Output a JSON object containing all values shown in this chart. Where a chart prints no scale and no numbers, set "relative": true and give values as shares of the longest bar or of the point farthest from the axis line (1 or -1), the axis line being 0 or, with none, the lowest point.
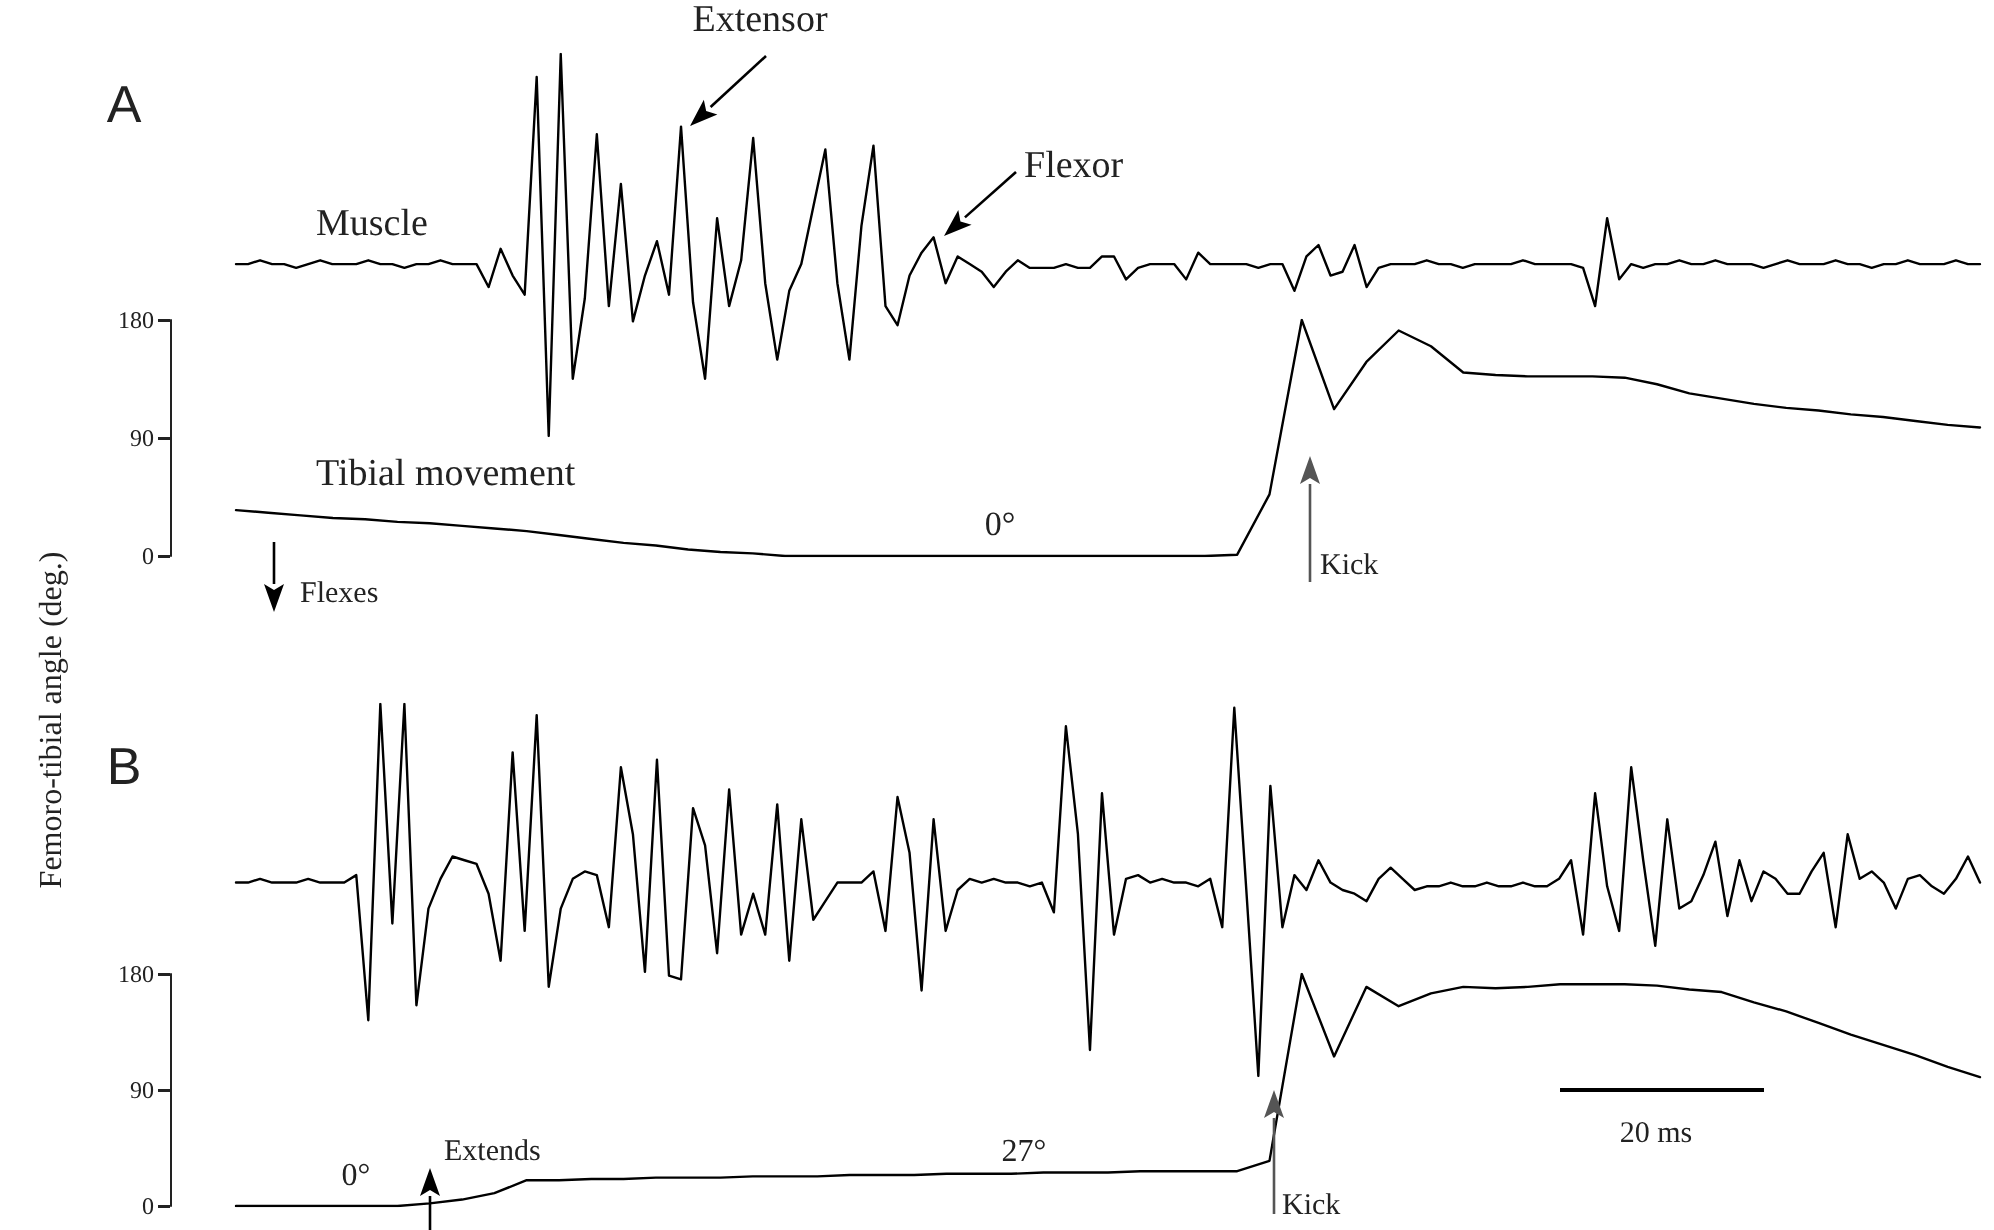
{
  "chart_data": [
    {
      "type": "line",
      "relative": true,
      "tick_labels": false,
      "color": "#000000",
      "annotations": [
        "A",
        "Muscle",
        "Extensor",
        "Flexor"
      ],
      "categories": [
        null,
        null,
        null,
        null,
        null,
        null,
        null,
        null,
        null,
        null,
        null,
        null,
        null,
        null,
        null,
        null,
        null,
        null,
        null,
        null,
        null,
        null,
        null,
        null,
        null,
        null,
        null,
        null,
        null,
        null,
        null,
        null,
        null,
        null,
        null,
        null,
        null,
        null,
        null,
        null,
        null,
        null,
        null,
        null,
        null,
        null,
        null,
        null,
        null,
        null,
        null,
        null,
        null,
        null,
        null,
        null,
        null,
        null,
        null,
        null,
        null,
        null,
        null,
        null,
        null,
        null,
        null,
        null,
        null,
        null,
        null,
        null,
        null,
        null,
        null,
        null,
        null,
        null,
        null,
        null,
        null,
        null,
        null,
        null,
        null,
        null,
        null,
        null,
        null,
        null,
        null,
        null,
        null,
        null,
        null,
        null,
        null,
        null,
        null,
        null,
        null,
        null,
        null,
        null,
        null,
        null,
        null,
        null,
        null,
        null,
        null,
        null,
        null,
        null,
        null,
        null,
        null,
        null,
        null,
        null,
        null,
        null,
        null,
        null,
        null,
        null,
        null,
        null,
        null,
        null,
        null,
        null,
        null,
        null,
        null,
        null,
        null,
        null,
        null,
        null,
        null,
        null,
        null,
        null,
        null,
        null
      ],
      "values": [
        0.45,
        0.45,
        0.46,
        0.45,
        0.45,
        0.44,
        0.45,
        0.46,
        0.45,
        0.45,
        0.45,
        0.46,
        0.45,
        0.45,
        0.44,
        0.45,
        0.45,
        0.46,
        0.45,
        0.45,
        0.45,
        0.39,
        0.49,
        0.42,
        0.37,
        0.94,
        0,
        1,
        0.15,
        0.36,
        0.79,
        0.34,
        0.66,
        0.3,
        0.42,
        0.51,
        0.37,
        0.81,
        0.35,
        0.15,
        0.57,
        0.34,
        0.46,
        0.78,
        0.4,
        0.2,
        0.38,
        0.45,
        0.6,
        0.75,
        0.4,
        0.2,
        0.55,
        0.76,
        0.34,
        0.29,
        0.42,
        0.48,
        0.52,
        0.4,
        0.47,
        0.45,
        0.43,
        0.39,
        0.43,
        0.46,
        0.44,
        0.44,
        0.44,
        0.45,
        0.44,
        0.44,
        0.47,
        0.47,
        0.41,
        0.44,
        0.45,
        0.45,
        0.45,
        0.41,
        0.48,
        0.45,
        0.45,
        0.45,
        0.45,
        0.44,
        0.45,
        0.45,
        0.38,
        0.47,
        0.5,
        0.42,
        0.43,
        0.5,
        0.39,
        0.44,
        0.45,
        0.45,
        0.45,
        0.46,
        0.45,
        0.45,
        0.44,
        0.45,
        0.45,
        0.45,
        0.45,
        0.46,
        0.45,
        0.45,
        0.45,
        0.45,
        0.44,
        0.34,
        0.57,
        0.41,
        0.45,
        0.44,
        0.45,
        0.45,
        0.46,
        0.45,
        0.45,
        0.46,
        0.45,
        0.45,
        0.45,
        0.44,
        0.45,
        0.46,
        0.45,
        0.45,
        0.45,
        0.46,
        0.45,
        0.45,
        0.44,
        0.45,
        0.45,
        0.46,
        0.45,
        0.45,
        0.45,
        0.46,
        0.45,
        0.45
      ]
    },
    {
      "type": "line",
      "tick_labels": "y",
      "color": "#000000",
      "ylabel": "Femoro-tibial angle (deg.)",
      "ylim": [
        0,
        180
      ],
      "yticks": [
        0,
        90,
        180
      ],
      "annotations": [
        "Tibial movement",
        "0°",
        "Kick",
        "Flexes"
      ],
      "categories": [
        null,
        null,
        null,
        null,
        null,
        null,
        null,
        null,
        null,
        null,
        null,
        null,
        null,
        null,
        null,
        null,
        null,
        null,
        null,
        null,
        null,
        null,
        null,
        null,
        null,
        null,
        null,
        null,
        null,
        null,
        null,
        null,
        null,
        null,
        null,
        null,
        null,
        null,
        null,
        null,
        null,
        null,
        null,
        null,
        null,
        null,
        null,
        null,
        null,
        null,
        null,
        null,
        null,
        null,
        null
      ],
      "values": [
        35,
        33,
        31,
        29,
        28,
        26,
        25,
        23,
        21,
        19,
        16,
        13,
        10,
        8,
        5,
        3,
        2,
        0,
        0,
        0,
        0,
        0,
        0,
        0,
        0,
        0,
        0,
        0,
        0,
        0,
        0,
        1,
        47,
        180,
        112,
        148,
        172,
        160,
        140,
        138,
        137,
        137,
        137,
        136,
        131,
        124,
        120,
        116,
        113,
        111,
        108,
        106,
        103,
        100,
        98
      ]
    },
    {
      "type": "line",
      "relative": true,
      "tick_labels": false,
      "color": "#000000",
      "annotations": [
        "B"
      ],
      "categories": [
        null,
        null,
        null,
        null,
        null,
        null,
        null,
        null,
        null,
        null,
        null,
        null,
        null,
        null,
        null,
        null,
        null,
        null,
        null,
        null,
        null,
        null,
        null,
        null,
        null,
        null,
        null,
        null,
        null,
        null,
        null,
        null,
        null,
        null,
        null,
        null,
        null,
        null,
        null,
        null,
        null,
        null,
        null,
        null,
        null,
        null,
        null,
        null,
        null,
        null,
        null,
        null,
        null,
        null,
        null,
        null,
        null,
        null,
        null,
        null,
        null,
        null,
        null,
        null,
        null,
        null,
        null,
        null,
        null,
        null,
        null,
        null,
        null,
        null,
        null,
        null,
        null,
        null,
        null,
        null,
        null,
        null,
        null,
        null,
        null,
        null,
        null,
        null,
        null,
        null,
        null,
        null,
        null,
        null,
        null,
        null,
        null,
        null,
        null,
        null,
        null,
        null,
        null,
        null,
        null,
        null,
        null,
        null,
        null,
        null,
        null,
        null,
        null,
        null,
        null,
        null,
        null,
        null,
        null,
        null,
        null,
        null,
        null,
        null,
        null,
        null,
        null,
        null,
        null,
        null,
        null,
        null,
        null,
        null,
        null,
        null,
        null,
        null,
        null,
        null,
        null,
        null,
        null,
        null,
        null,
        null
      ],
      "values": [
        0.52,
        0.52,
        0.53,
        0.52,
        0.52,
        0.52,
        0.53,
        0.52,
        0.52,
        0.52,
        0.54,
        0.15,
        1,
        0.41,
        1,
        0.19,
        0.45,
        0.53,
        0.59,
        0.58,
        0.57,
        0.49,
        0.31,
        0.87,
        0.39,
        0.97,
        0.24,
        0.45,
        0.53,
        0.55,
        0.54,
        0.4,
        0.83,
        0.65,
        0.28,
        0.85,
        0.27,
        0.26,
        0.72,
        0.62,
        0.33,
        0.77,
        0.38,
        0.49,
        0.38,
        0.73,
        0.31,
        0.69,
        0.42,
        0.47,
        0.52,
        0.52,
        0.52,
        0.55,
        0.39,
        0.75,
        0.6,
        0.23,
        0.69,
        0.39,
        0.5,
        0.53,
        0.52,
        0.53,
        0.52,
        0.52,
        0.51,
        0.52,
        0.44,
        0.94,
        0.65,
        0.07,
        0.76,
        0.38,
        0.53,
        0.54,
        0.52,
        0.53,
        0.52,
        0.52,
        0.51,
        0.53,
        0.4,
        0.99,
        0.5,
        0,
        0.78,
        0.4,
        0.54,
        0.5,
        0.58,
        0.52,
        0.5,
        0.49,
        0.47,
        0.53,
        0.56,
        0.53,
        0.5,
        0.51,
        0.51,
        0.52,
        0.51,
        0.51,
        0.52,
        0.51,
        0.51,
        0.52,
        0.51,
        0.51,
        0.53,
        0.58,
        0.38,
        0.76,
        0.51,
        0.39,
        0.83,
        0.58,
        0.35,
        0.69,
        0.45,
        0.47,
        0.54,
        0.63,
        0.43,
        0.58,
        0.47,
        0.55,
        0.53,
        0.49,
        0.49,
        0.55,
        0.6,
        0.4,
        0.65,
        0.53,
        0.55,
        0.52,
        0.45,
        0.53,
        0.54,
        0.51,
        0.49,
        0.53,
        0.59,
        0.52
      ]
    },
    {
      "type": "line",
      "tick_labels": "y",
      "color": "#000000",
      "ylim": [
        0,
        180
      ],
      "yticks": [
        0,
        90,
        180
      ],
      "annotations": [
        "0°",
        "Extends",
        "27°",
        "Kick",
        "20 ms"
      ],
      "categories": [
        null,
        null,
        null,
        null,
        null,
        null,
        null,
        null,
        null,
        null,
        null,
        null,
        null,
        null,
        null,
        null,
        null,
        null,
        null,
        null,
        null,
        null,
        null,
        null,
        null,
        null,
        null,
        null,
        null,
        null,
        null,
        null,
        null,
        null,
        null,
        null,
        null,
        null,
        null,
        null,
        null,
        null,
        null,
        null,
        null,
        null,
        null,
        null,
        null,
        null,
        null,
        null,
        null,
        null,
        null
      ],
      "values": [
        0,
        0,
        0,
        0,
        0,
        0,
        2,
        5,
        10,
        20,
        20,
        21,
        21,
        22,
        22,
        22,
        23,
        23,
        23,
        24,
        24,
        24,
        25,
        25,
        25,
        26,
        26,
        26,
        27,
        27,
        27,
        27,
        35,
        180,
        116,
        170,
        155,
        165,
        170,
        169,
        170,
        172,
        172,
        172,
        171,
        168,
        166,
        158,
        151,
        142,
        133,
        125,
        117,
        108,
        100
      ]
    }
  ]
}
